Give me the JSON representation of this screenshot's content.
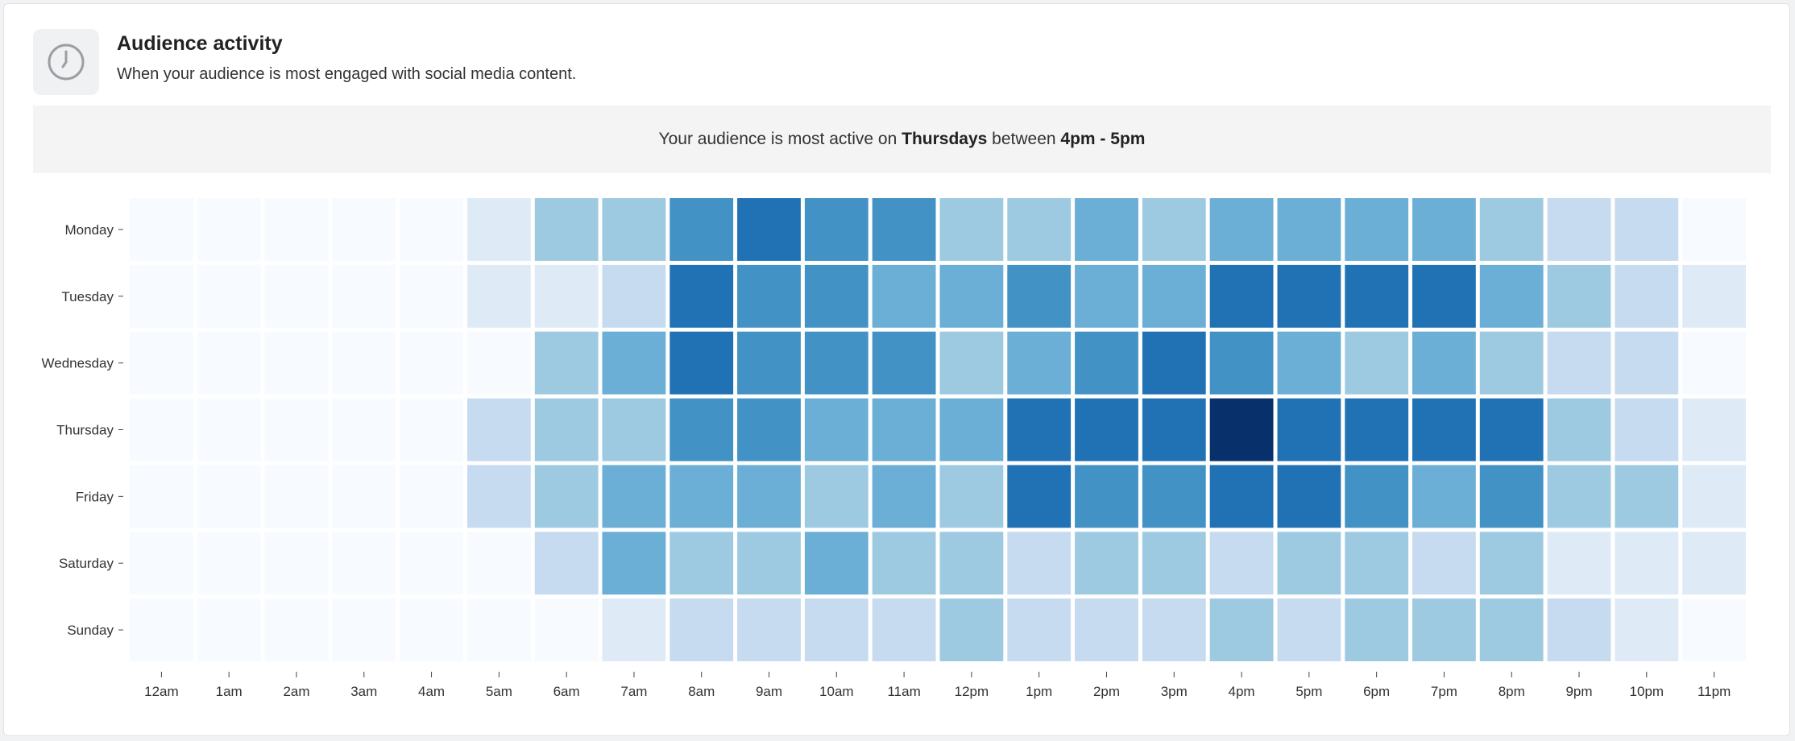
{
  "header": {
    "icon": "clock-icon",
    "title": "Audience activity",
    "subtitle": "When your audience is most engaged with social media content."
  },
  "banner": {
    "prefix": "Your audience is most active on",
    "day": "Thursdays",
    "middle": "between",
    "time": "4pm - 5pm"
  },
  "chart_data": {
    "type": "heatmap",
    "x": [
      "12am",
      "1am",
      "2am",
      "3am",
      "4am",
      "5am",
      "6am",
      "7am",
      "8am",
      "9am",
      "10am",
      "11am",
      "12pm",
      "1pm",
      "2pm",
      "3pm",
      "4pm",
      "5pm",
      "6pm",
      "7pm",
      "8pm",
      "9pm",
      "10pm",
      "11pm"
    ],
    "y": [
      "Monday",
      "Tuesday",
      "Wednesday",
      "Thursday",
      "Friday",
      "Saturday",
      "Sunday"
    ],
    "values": [
      [
        0,
        0,
        0,
        0,
        0,
        1,
        4,
        4,
        6,
        7,
        6,
        6,
        4,
        4,
        5,
        4,
        5,
        5,
        5,
        5,
        4,
        3,
        2,
        0
      ],
      [
        0,
        0,
        0,
        0,
        0,
        1,
        1,
        2,
        7,
        6,
        6,
        5,
        5,
        6,
        5,
        5,
        7,
        7,
        7,
        7,
        5,
        4,
        3,
        1
      ],
      [
        0,
        0,
        0,
        0,
        0,
        0,
        4,
        5,
        7,
        6,
        6,
        6,
        4,
        5,
        6,
        7,
        6,
        5,
        4,
        5,
        4,
        3,
        3,
        0
      ],
      [
        0,
        0,
        0,
        0,
        0,
        2,
        4,
        4,
        6,
        6,
        5,
        5,
        5,
        8,
        7,
        7,
        10,
        8,
        7,
        8,
        8,
        4,
        3,
        1
      ],
      [
        0,
        0,
        0,
        0,
        0,
        2,
        4,
        5,
        5,
        5,
        4,
        5,
        4,
        7,
        6,
        6,
        8,
        7,
        6,
        5,
        6,
        4,
        4,
        1
      ],
      [
        0,
        0,
        0,
        0,
        0,
        0,
        2,
        5,
        4,
        4,
        5,
        4,
        4,
        2,
        4,
        4,
        2,
        4,
        4,
        2,
        4,
        1,
        1,
        1
      ],
      [
        0,
        0,
        0,
        0,
        0,
        0,
        0,
        1,
        2,
        2,
        2,
        2,
        4,
        2,
        2,
        2,
        4,
        2,
        4,
        4,
        4,
        2,
        1,
        0
      ]
    ],
    "value_range": [
      0,
      10
    ],
    "colors": [
      "#f7fbff",
      "#deebf7",
      "#c6dbef",
      "#9ecae1",
      "#6baed6",
      "#4292c6",
      "#2171b5",
      "#08519c",
      "#08306b"
    ],
    "legend": "none",
    "grid": false
  }
}
